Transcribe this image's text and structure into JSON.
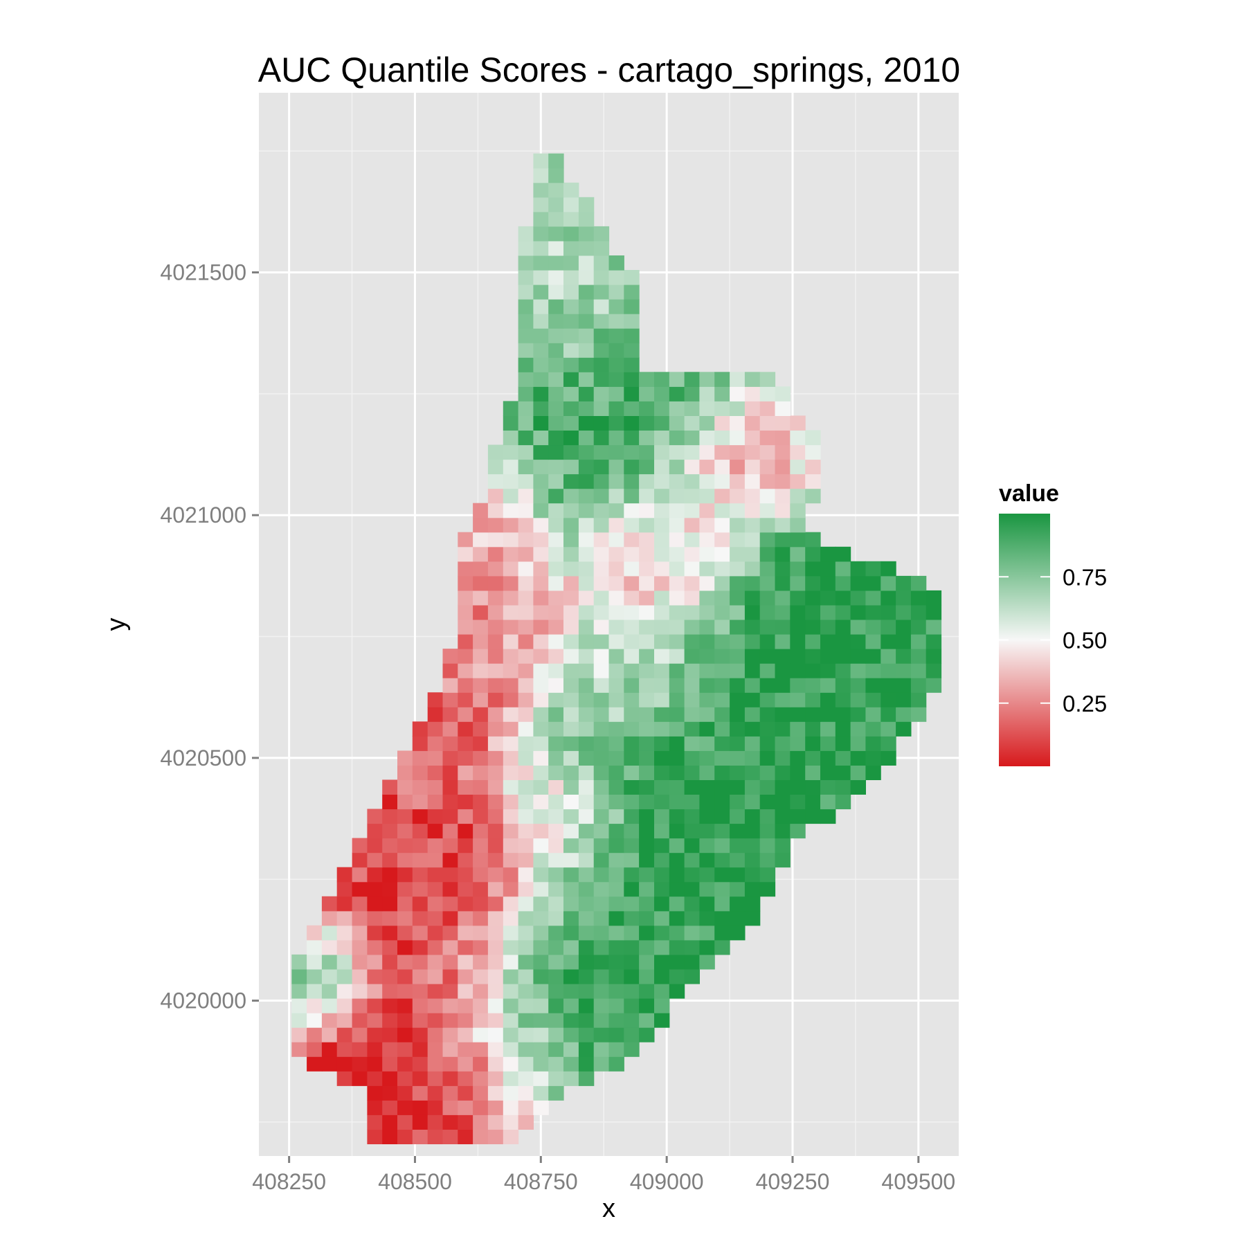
{
  "chart_data": {
    "type": "heatmap",
    "title": "AUC Quantile Scores - cartago_springs, 2010",
    "xlabel": "x",
    "ylabel": "y",
    "x_ticks": [
      408250,
      408500,
      408750,
      409000,
      409250,
      409500
    ],
    "x_tick_labels": [
      "408250",
      "408500",
      "408750",
      "409000",
      "409250",
      "409500"
    ],
    "y_ticks": [
      4020000,
      4020500,
      4021000,
      4021500
    ],
    "y_tick_labels": [
      "4020000",
      "4020500",
      "4021000",
      "4021500"
    ],
    "xlim": [
      408190,
      409580
    ],
    "ylim": [
      4019680,
      4021870
    ],
    "grid": true,
    "cell_size": 30,
    "legend": {
      "title": "value",
      "position": "right",
      "breaks": [
        0.25,
        0.5,
        0.75
      ],
      "labels": [
        "0.25",
        "0.50",
        "0.75"
      ],
      "range": [
        0,
        1
      ],
      "colors": {
        "low": "#d7191c",
        "mid": "#f7f7f7",
        "high": "#1a9641"
      }
    },
    "region_profile": [
      {
        "y": 4021730,
        "x_min": 408740,
        "x_max": 408790
      },
      {
        "y": 4021590,
        "x_min": 408720,
        "x_max": 408870
      },
      {
        "y": 4021500,
        "x_min": 408700,
        "x_max": 408930
      },
      {
        "y": 4021310,
        "x_min": 408700,
        "x_max": 408930
      },
      {
        "y": 4021280,
        "x_min": 408700,
        "x_max": 409210
      },
      {
        "y": 4021180,
        "x_min": 408670,
        "x_max": 409290
      },
      {
        "y": 4021060,
        "x_min": 408640,
        "x_max": 409300
      },
      {
        "y": 4020960,
        "x_min": 408600,
        "x_max": 409270
      },
      {
        "y": 4020850,
        "x_min": 408600,
        "x_max": 409540
      },
      {
        "y": 4020700,
        "x_min": 408560,
        "x_max": 409560
      },
      {
        "y": 4020560,
        "x_min": 408510,
        "x_max": 409490
      },
      {
        "y": 4020450,
        "x_min": 408450,
        "x_max": 409400
      },
      {
        "y": 4020310,
        "x_min": 408380,
        "x_max": 409240
      },
      {
        "y": 4020150,
        "x_min": 408300,
        "x_max": 409180
      },
      {
        "y": 4020060,
        "x_min": 408250,
        "x_max": 409060
      },
      {
        "y": 4019950,
        "x_min": 408250,
        "x_max": 408990
      },
      {
        "y": 4019880,
        "x_min": 408250,
        "x_max": 408920
      },
      {
        "y": 4019820,
        "x_min": 408400,
        "x_max": 408800
      },
      {
        "y": 4019720,
        "x_min": 408400,
        "x_max": 408690
      }
    ],
    "value_centers": [
      {
        "x": 408500,
        "y": 4019880,
        "value": 0.02,
        "spread": 200
      },
      {
        "x": 408530,
        "y": 4020200,
        "value": 0.05,
        "spread": 160
      },
      {
        "x": 408440,
        "y": 4020330,
        "value": 0.12,
        "spread": 150
      },
      {
        "x": 408500,
        "y": 4020550,
        "value": 0.18,
        "spread": 150
      },
      {
        "x": 408600,
        "y": 4020800,
        "value": 0.28,
        "spread": 140
      },
      {
        "x": 408600,
        "y": 4021000,
        "value": 0.35,
        "spread": 110
      },
      {
        "x": 408990,
        "y": 4020900,
        "value": 0.35,
        "spread": 130
      },
      {
        "x": 409150,
        "y": 4021100,
        "value": 0.3,
        "spread": 110
      },
      {
        "x": 408930,
        "y": 4020650,
        "value": 0.55,
        "spread": 120
      },
      {
        "x": 408800,
        "y": 4020400,
        "value": 0.42,
        "spread": 100
      },
      {
        "x": 408780,
        "y": 4021450,
        "value": 0.65,
        "spread": 140
      },
      {
        "x": 408320,
        "y": 4020050,
        "value": 0.85,
        "spread": 90
      },
      {
        "x": 409000,
        "y": 4020450,
        "value": 0.97,
        "spread": 200
      },
      {
        "x": 409300,
        "y": 4020700,
        "value": 0.96,
        "spread": 260
      },
      {
        "x": 408800,
        "y": 4020000,
        "value": 0.92,
        "spread": 200
      },
      {
        "x": 408880,
        "y": 4021200,
        "value": 0.88,
        "spread": 200
      }
    ]
  }
}
